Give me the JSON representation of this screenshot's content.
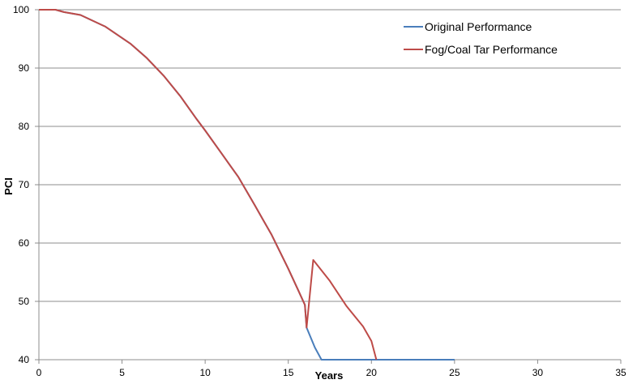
{
  "chart_data": {
    "type": "line",
    "title": "",
    "xlabel": "Years",
    "ylabel": "PCI",
    "xlim": [
      0,
      35
    ],
    "ylim": [
      40,
      100
    ],
    "xticks": [
      0,
      5,
      10,
      15,
      20,
      25,
      30,
      35
    ],
    "yticks": [
      40,
      50,
      60,
      70,
      80,
      90,
      100
    ],
    "grid": "horizontal",
    "legend_position": "top-right",
    "series": [
      {
        "name": "Original Performance",
        "color": "#4a7ebb",
        "points": [
          [
            0,
            100
          ],
          [
            1,
            100
          ],
          [
            1.5,
            99.6
          ],
          [
            2.5,
            99.1
          ],
          [
            4,
            97.1
          ],
          [
            5.5,
            94.2
          ],
          [
            6.5,
            91.7
          ],
          [
            7.5,
            88.7
          ],
          [
            8.5,
            85.2
          ],
          [
            9.5,
            81.2
          ],
          [
            10,
            79.3
          ],
          [
            11,
            75.3
          ],
          [
            11.5,
            73.3
          ],
          [
            12,
            71.3
          ],
          [
            13,
            66.4
          ],
          [
            13.5,
            63.9
          ],
          [
            14,
            61.4
          ],
          [
            15,
            55.6
          ],
          [
            15.6,
            51.9
          ],
          [
            16,
            49.4
          ],
          [
            16.1,
            45.5
          ],
          [
            16.6,
            42.1
          ],
          [
            17,
            40
          ],
          [
            25,
            40
          ]
        ]
      },
      {
        "name": "Fog/Coal Tar Performance",
        "color": "#be4b48",
        "points": [
          [
            0,
            100
          ],
          [
            1,
            100
          ],
          [
            1.5,
            99.6
          ],
          [
            2.5,
            99.1
          ],
          [
            4,
            97.1
          ],
          [
            5.5,
            94.2
          ],
          [
            6.5,
            91.7
          ],
          [
            7.5,
            88.7
          ],
          [
            8.5,
            85.2
          ],
          [
            9.5,
            81.2
          ],
          [
            10,
            79.3
          ],
          [
            11,
            75.3
          ],
          [
            11.5,
            73.3
          ],
          [
            12,
            71.3
          ],
          [
            13,
            66.4
          ],
          [
            13.5,
            63.9
          ],
          [
            14,
            61.4
          ],
          [
            15,
            55.6
          ],
          [
            15.6,
            51.9
          ],
          [
            16,
            49.4
          ],
          [
            16.1,
            45.5
          ],
          [
            16.5,
            57.1
          ],
          [
            17.5,
            53.5
          ],
          [
            18.5,
            49.2
          ],
          [
            19.5,
            45.7
          ],
          [
            20,
            43.2
          ],
          [
            20.3,
            40
          ]
        ]
      }
    ]
  }
}
